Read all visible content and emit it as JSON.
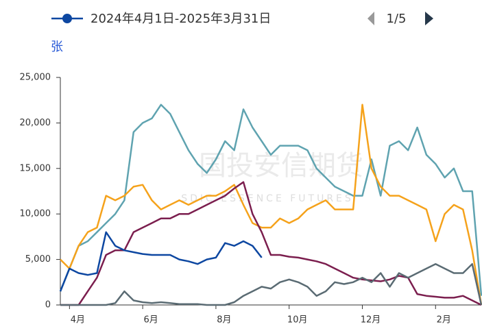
{
  "chart_data": {
    "type": "line",
    "y_label": "张",
    "legend_page": "1/5",
    "watermark": "国投安信期货",
    "watermark_sub": "SDIC ESSENCE FUTURES",
    "categories": [
      null,
      "4月",
      null,
      null,
      null,
      null,
      null,
      null,
      null,
      "6月",
      null,
      null,
      null,
      null,
      null,
      null,
      null,
      "8月",
      null,
      null,
      null,
      null,
      null,
      null,
      null,
      "10月",
      null,
      null,
      null,
      null,
      null,
      null,
      null,
      "12月",
      null,
      null,
      null,
      null,
      null,
      null,
      null,
      "2月",
      null,
      null,
      null,
      null,
      null
    ],
    "ylim": [
      0,
      25000
    ],
    "yticks": [
      0,
      {
        "value": 5000,
        "label": "5,000"
      },
      {
        "value": 10000,
        "label": "10,000"
      },
      {
        "value": 15000,
        "label": "15,000"
      },
      {
        "value": 20000,
        "label": "20,000"
      },
      {
        "value": 25000,
        "label": "25,000"
      }
    ],
    "series": [
      {
        "color": "#5fa3b0",
        "values": [
          1500,
          4000,
          6500,
          7000,
          8000,
          9000,
          10000,
          11500,
          19000,
          20000,
          20500,
          22000,
          21000,
          19000,
          17000,
          15500,
          14500,
          16000,
          18000,
          17000,
          21500,
          19500,
          18000,
          16500,
          17500,
          17500,
          17500,
          17000,
          15000,
          14000,
          13000,
          12500,
          12000,
          12000,
          16000,
          12000,
          17500,
          18000,
          17000,
          19500,
          16500,
          15500,
          14000,
          15000,
          12500,
          12500,
          1000
        ]
      },
      {
        "color": "#f5a21b",
        "values": [
          5000,
          4000,
          6500,
          8000,
          8500,
          12000,
          11500,
          12000,
          13000,
          13200,
          11500,
          10500,
          11000,
          11500,
          11000,
          11500,
          12000,
          12000,
          12500,
          13200,
          11000,
          9000,
          8500,
          8500,
          9500,
          9000,
          9500,
          10500,
          11000,
          11500,
          10500,
          10500,
          10500,
          22000,
          15000,
          13000,
          12000,
          12000,
          11500,
          11000,
          10500,
          7000,
          10000,
          11000,
          10500,
          6000,
          0
        ]
      },
      {
        "color": "#7b1e4e",
        "values": [
          0,
          0,
          0,
          1500,
          3000,
          5500,
          6000,
          6000,
          8000,
          8500,
          9000,
          9500,
          9500,
          10000,
          10000,
          10500,
          11000,
          11500,
          12000,
          12800,
          13500,
          10000,
          8000,
          5500,
          5500,
          5300,
          5200,
          5000,
          4800,
          4500,
          4000,
          3500,
          3000,
          2800,
          2700,
          2600,
          2800,
          3200,
          3000,
          1200,
          1000,
          900,
          800,
          800,
          1000,
          500,
          0
        ]
      },
      {
        "color": "#5a6b73",
        "values": [
          0,
          0,
          0,
          0,
          0,
          0,
          200,
          1500,
          500,
          300,
          200,
          300,
          200,
          100,
          100,
          100,
          0,
          0,
          0,
          300,
          1000,
          1500,
          2000,
          1800,
          2500,
          2800,
          2500,
          2000,
          1000,
          1500,
          2500,
          2300,
          2500,
          3000,
          2500,
          3500,
          2000,
          3500,
          3000,
          3500,
          4000,
          4500,
          4000,
          3500,
          3500,
          4500,
          0
        ]
      },
      {
        "name": "2024年4月1日-2025年3月31日",
        "color": "#0d47a1",
        "values": [
          1500,
          4000,
          3500,
          3300,
          3500,
          8000,
          6500,
          6000,
          5800,
          5600,
          5500,
          5500,
          5500,
          5000,
          4800,
          4500,
          5000,
          5200,
          6800,
          6500,
          7000,
          6500,
          5200,
          null,
          null,
          null,
          null,
          null,
          null,
          null,
          null,
          null,
          null,
          null,
          null,
          null,
          null,
          null,
          null,
          null,
          null,
          null,
          null,
          null,
          null,
          null,
          null
        ]
      }
    ]
  }
}
